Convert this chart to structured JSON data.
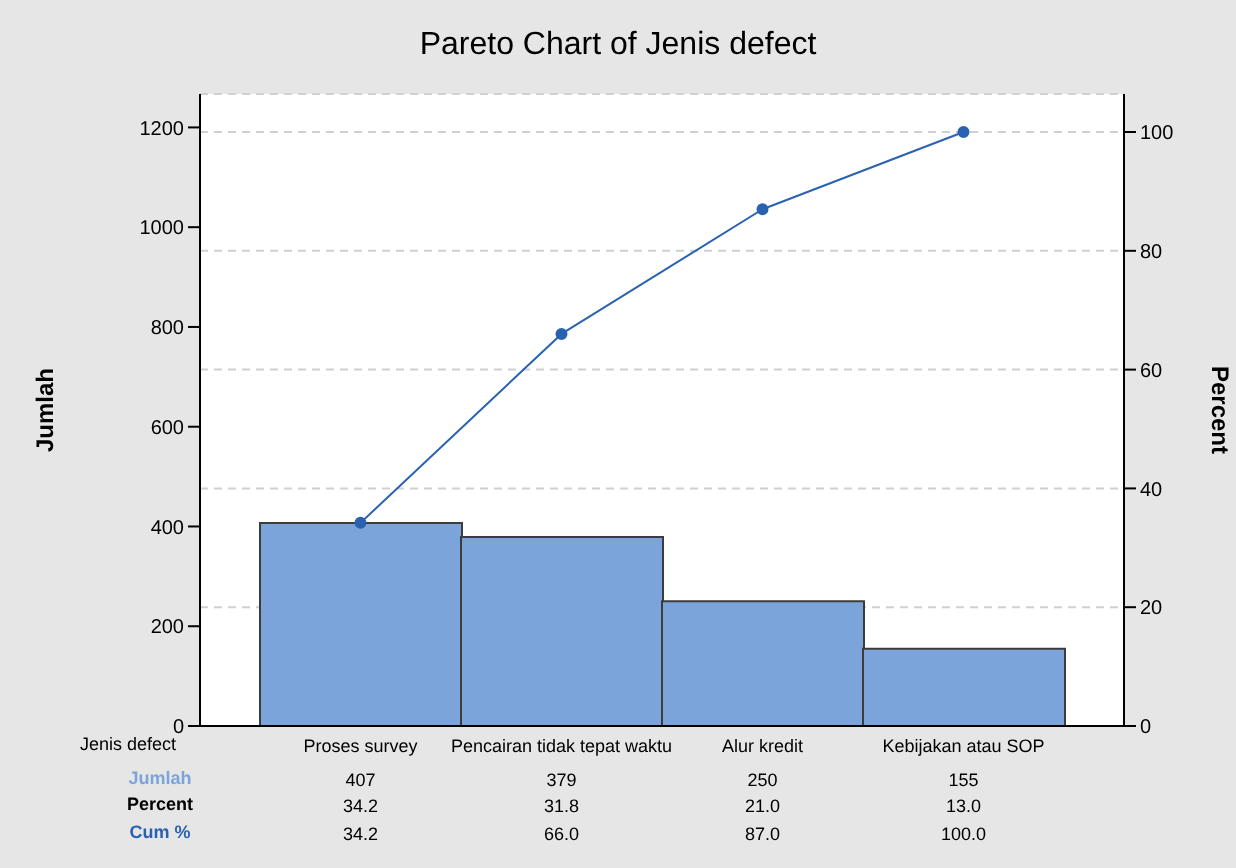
{
  "chart_data": {
    "type": "bar",
    "title": "Pareto Chart of Jenis defect",
    "xlabel": "Jenis defect",
    "ylabel": "Jumlah",
    "y2label": "Percent",
    "categories": [
      "Proses survey",
      "Pencairan tidak tepat waktu",
      "Alur kredit",
      "Kebijakan atau SOP"
    ],
    "series": [
      {
        "name": "Jumlah",
        "color": "#7ba5da",
        "values": [
          407,
          379,
          250,
          155
        ]
      },
      {
        "name": "Cum %",
        "type": "line",
        "axis": "y2",
        "color": "#2a62b0",
        "values": [
          34.2,
          66.0,
          87.0,
          100.0
        ],
        "value_labels": [
          "34.2",
          "66.0",
          "87.0",
          "100.0"
        ]
      }
    ],
    "annotations": [
      "Percent",
      "34.2",
      "31.8",
      "21.0",
      "13.0"
    ],
    "data_labels": true,
    "ylim": [
      0,
      1267
    ],
    "yticks": [
      0,
      200,
      400,
      600,
      800,
      1000,
      1200
    ],
    "y2lim": [
      0,
      106.4
    ],
    "y2ticks": [
      0,
      20,
      40,
      60,
      80,
      100
    ],
    "grid": "y2",
    "marker": "circle",
    "legend": false
  }
}
